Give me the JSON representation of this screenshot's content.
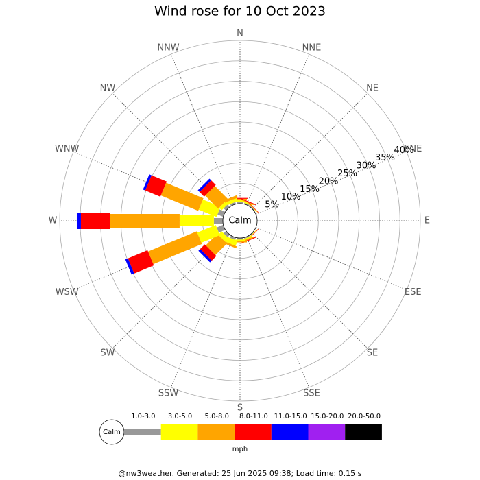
{
  "chart_data": {
    "type": "windrose",
    "title": "Wind rose for 10 Oct 2023",
    "categories": [
      "N",
      "NNE",
      "NE",
      "ENE",
      "E",
      "ESE",
      "SE",
      "SSE",
      "S",
      "SSW",
      "SW",
      "WSW",
      "W",
      "WNW",
      "NW",
      "NNW"
    ],
    "rlim": [
      0,
      40
    ],
    "rticks": [
      {
        "value": 5,
        "label": "5%"
      },
      {
        "value": 10,
        "label": "10%"
      },
      {
        "value": 15,
        "label": "15%"
      },
      {
        "value": 20,
        "label": "20%"
      },
      {
        "value": 25,
        "label": "25%"
      },
      {
        "value": 30,
        "label": "30%"
      },
      {
        "value": 35,
        "label": "35%"
      },
      {
        "value": 40,
        "label": "40%"
      }
    ],
    "calm_label": "Calm",
    "unit_label": "mph",
    "series": [
      {
        "name": "1.0-3.0",
        "color": "#999999",
        "values": [
          0.5,
          0.3,
          0.2,
          0,
          0,
          0,
          0.2,
          0.3,
          0.4,
          0.6,
          0.8,
          1.7,
          2.2,
          1.5,
          0.8,
          0.5
        ]
      },
      {
        "name": "3.0-5.0",
        "color": "#ffff00",
        "values": [
          0.4,
          0.3,
          0.1,
          0,
          0,
          0,
          0.1,
          0.3,
          0.4,
          1.3,
          1.2,
          4.9,
          8.4,
          4.7,
          0.9,
          0.8
        ]
      },
      {
        "name": "5.0-8.0",
        "color": "#ffa500",
        "values": [
          0.3,
          0.2,
          0.1,
          0,
          0,
          0,
          0.1,
          0.3,
          0.3,
          0.5,
          4.0,
          12.9,
          17.1,
          9.9,
          4.5,
          0.6
        ]
      },
      {
        "name": "8.0-11.0",
        "color": "#ff0000",
        "values": [
          0.2,
          0.2,
          0.1,
          0,
          0,
          0,
          0.1,
          0.2,
          0,
          0,
          1.6,
          5.2,
          7.1,
          4.0,
          1.6,
          0
        ]
      },
      {
        "name": "11.0-15.0",
        "color": "#0000ff",
        "values": [
          0,
          0,
          0,
          0,
          0,
          0,
          0,
          0,
          0,
          0,
          0.6,
          0.7,
          1.0,
          0.6,
          0.6,
          0
        ]
      },
      {
        "name": "15.0-20.0",
        "color": "#a020f0",
        "values": [
          0,
          0,
          0,
          0,
          0,
          0,
          0,
          0,
          0,
          0,
          0,
          0,
          0,
          0,
          0,
          0
        ]
      },
      {
        "name": "20.0-50.0",
        "color": "#000000",
        "values": [
          0,
          0,
          0,
          0,
          0,
          0,
          0,
          0,
          0,
          0,
          0,
          0,
          0,
          0,
          0,
          0
        ]
      }
    ],
    "footer": "@nw3weather. Generated: 25 Jun 2025 09:38; Load time: 0.15 s"
  }
}
